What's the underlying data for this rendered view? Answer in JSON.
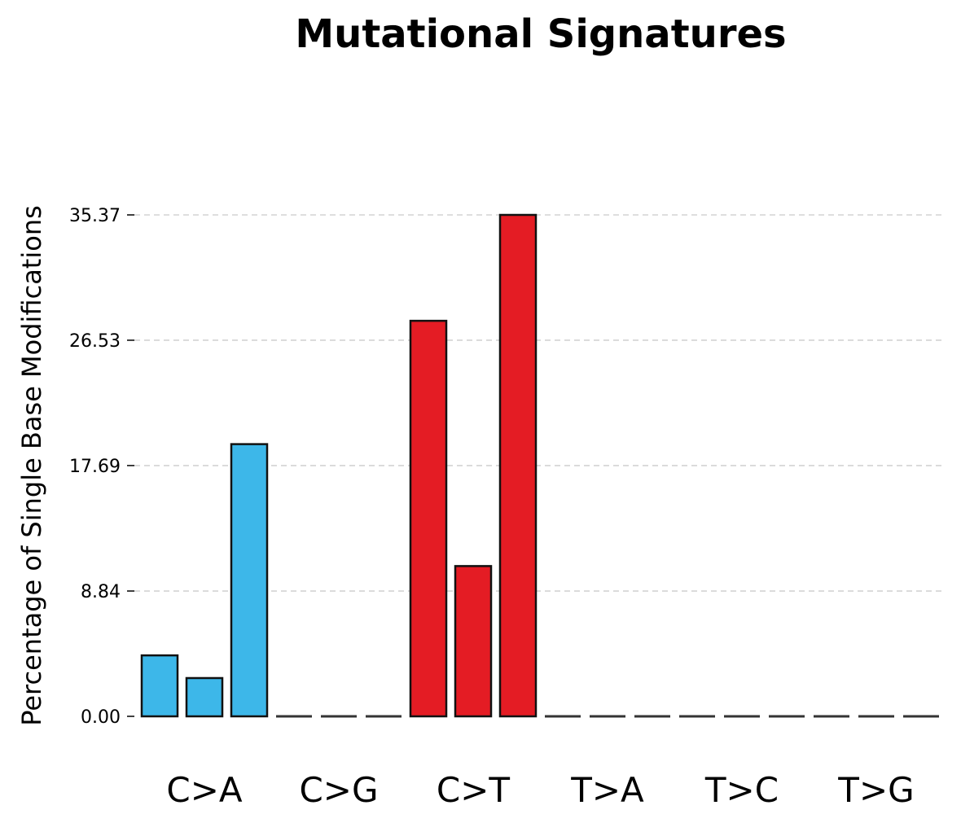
{
  "chart_data": {
    "type": "bar",
    "title": "Mutational Signatures",
    "xlabel": "",
    "ylabel": "Percentage of Single Base Modifications",
    "ylim": [
      0,
      35.37
    ],
    "yticks": [
      "0.00",
      "8.84",
      "17.69",
      "26.53",
      "35.37"
    ],
    "grid": true,
    "legend": "none",
    "groups": [
      {
        "label": "C>A",
        "color": "#3db7e9",
        "values": [
          4.3,
          2.7,
          19.2
        ]
      },
      {
        "label": "C>G",
        "color": "#000000",
        "values": [
          0,
          0,
          0
        ]
      },
      {
        "label": "C>T",
        "color": "#e41c24",
        "values": [
          27.9,
          10.6,
          35.37
        ]
      },
      {
        "label": "T>A",
        "color": "#a0a0a0",
        "values": [
          0,
          0,
          0
        ]
      },
      {
        "label": "T>C",
        "color": "#66c26e",
        "values": [
          0,
          0,
          0
        ]
      },
      {
        "label": "T>G",
        "color": "#f2b6c9",
        "values": [
          0,
          0,
          0
        ]
      }
    ]
  }
}
